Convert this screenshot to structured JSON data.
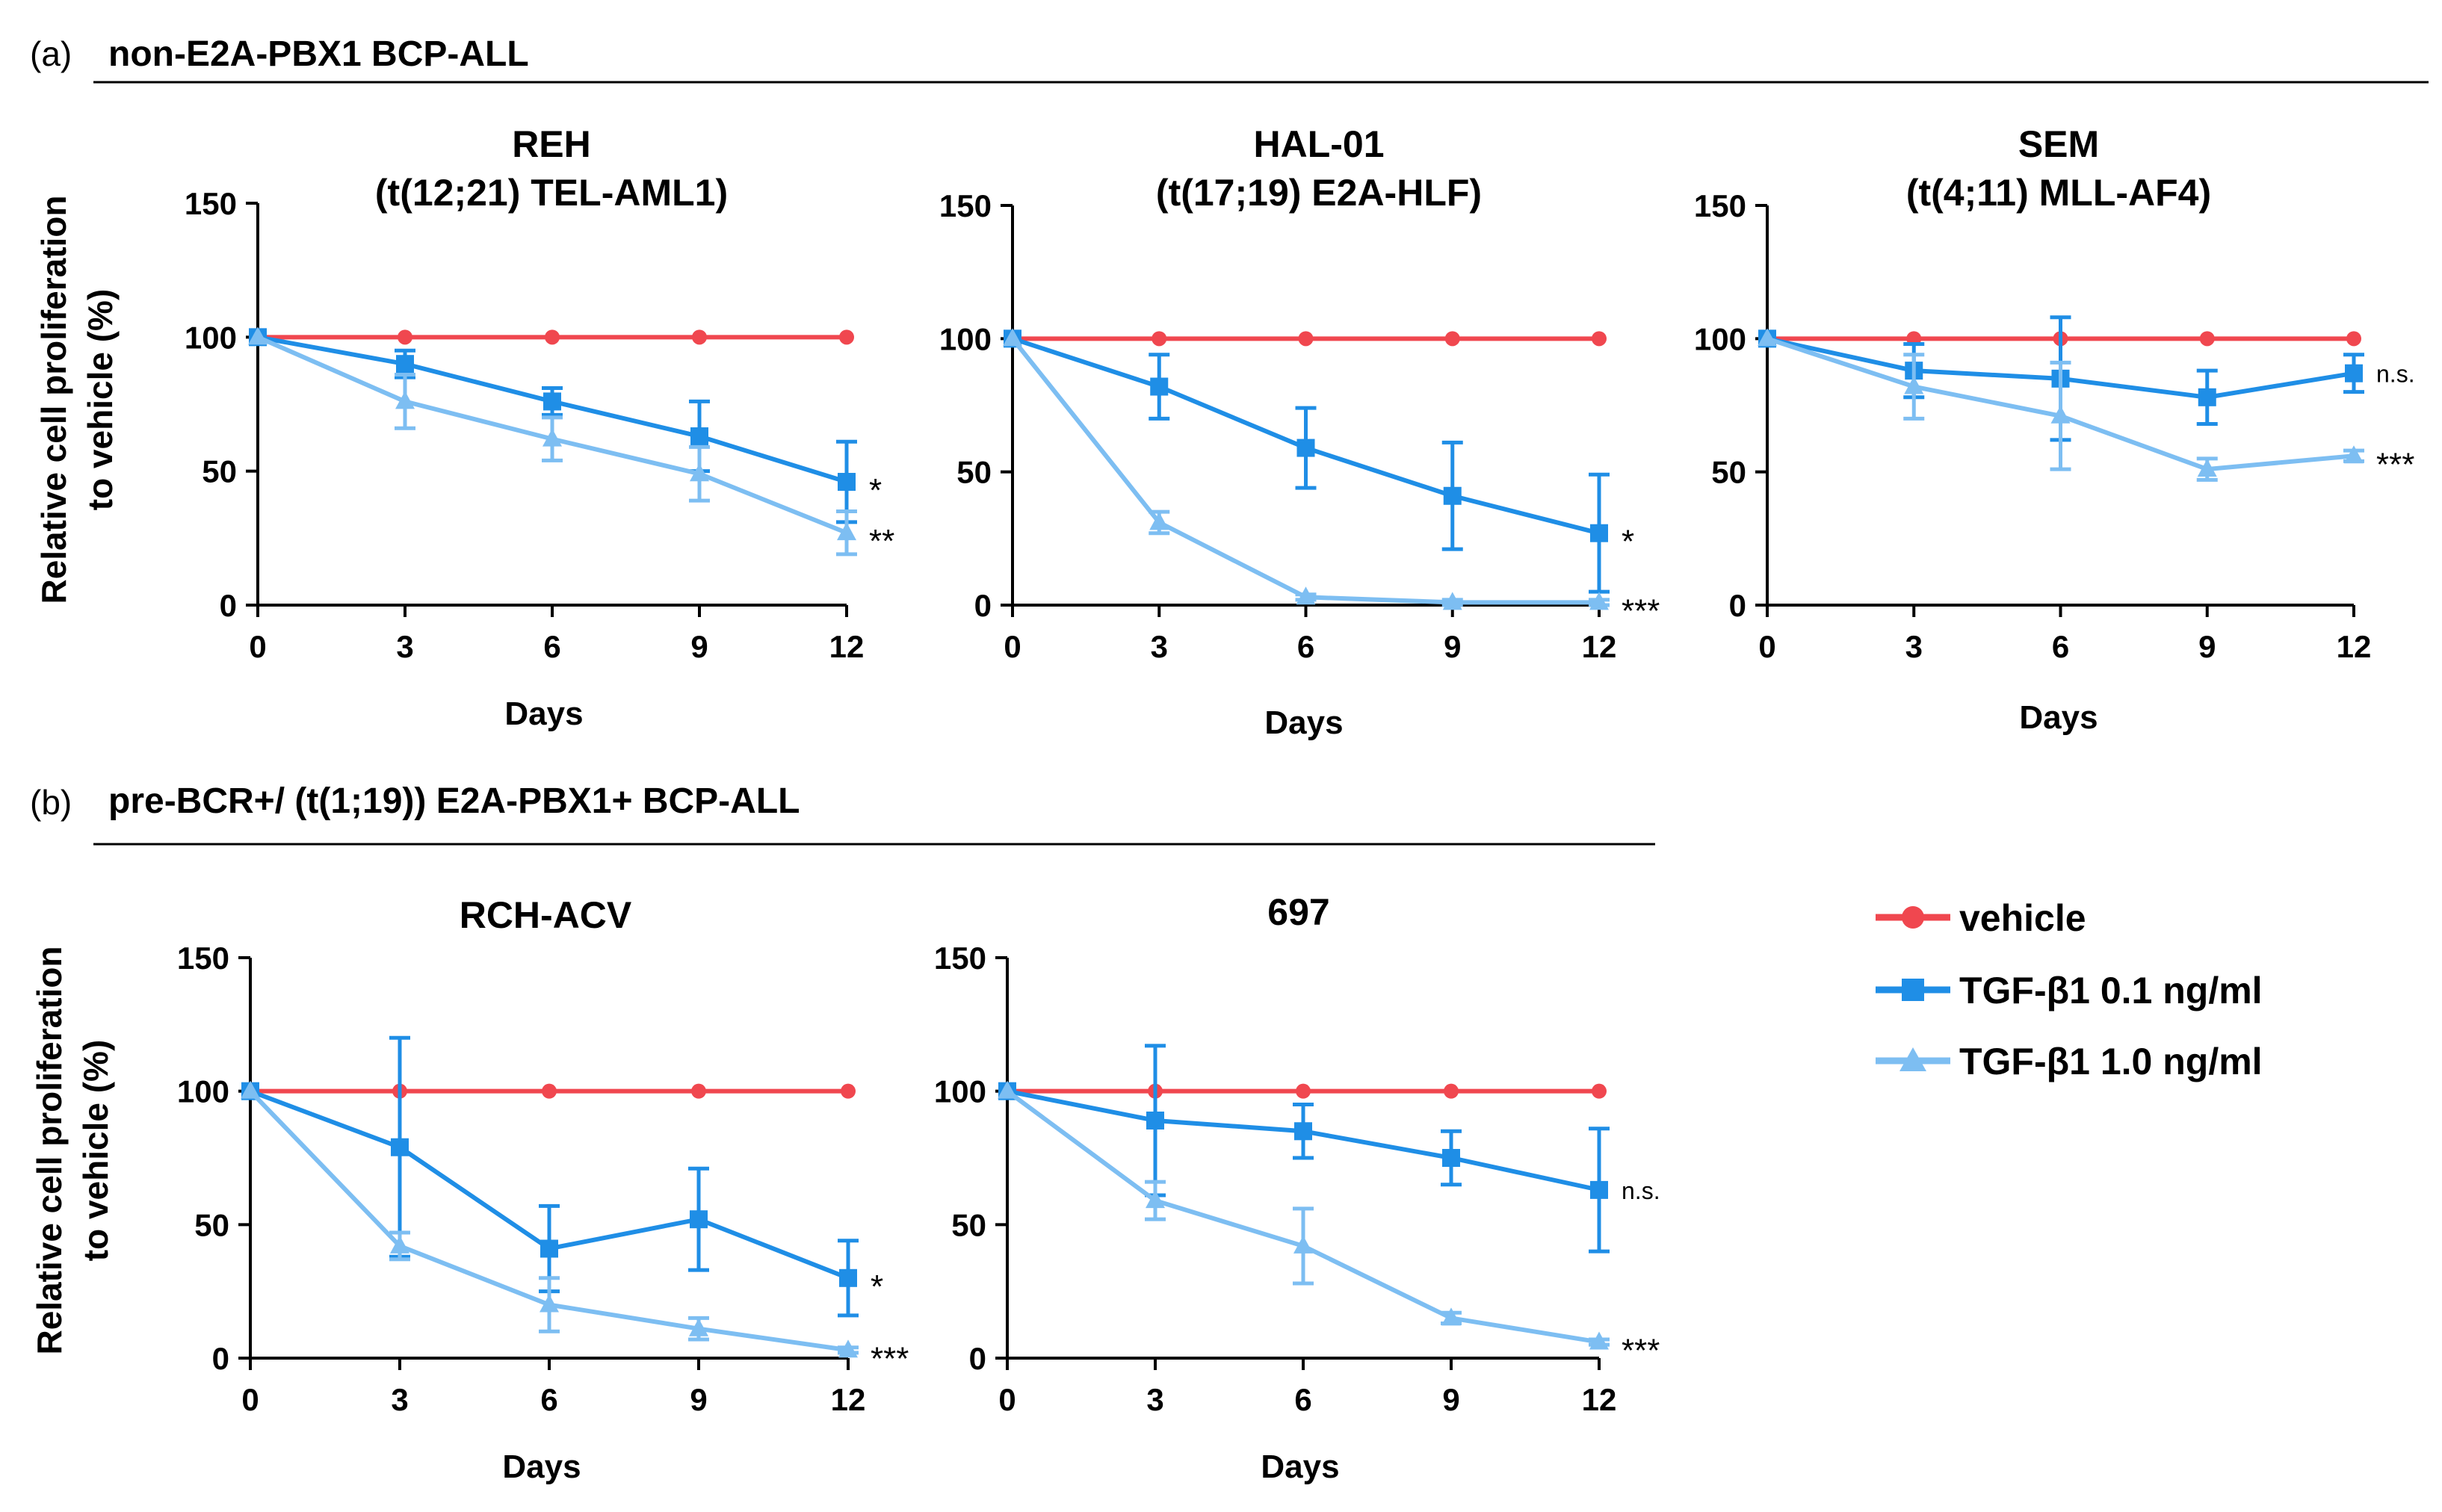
{
  "colors": {
    "vehicle": "#f0474f",
    "tgf_01": "#1f8ee6",
    "tgf_10": "#7dbef2",
    "text": "#000000"
  },
  "sections": [
    {
      "tag": "(a)",
      "title": "non-E2A-PBX1 BCP-ALL"
    },
    {
      "tag": "(b)",
      "title": "pre-BCR+/ (t(1;19)) E2A-PBX1+ BCP-ALL"
    }
  ],
  "y_axis_label": {
    "line1": "Relative cell proliferation",
    "line2": "to vehicle (%)"
  },
  "legend": [
    {
      "key": "vehicle",
      "label": "vehicle",
      "marker": "circle"
    },
    {
      "key": "tgf_01",
      "label": "TGF-β1 0.1 ng/ml",
      "marker": "square"
    },
    {
      "key": "tgf_10",
      "label": "TGF-β1 1.0 ng/ml",
      "marker": "triangle"
    }
  ],
  "chart_data": [
    {
      "type": "line",
      "title": "REH",
      "subtitle": "(t(12;21) TEL-AML1)",
      "xlabel": "Days",
      "ylabel": "Relative cell proliferation to vehicle (%)",
      "x": [
        0,
        3,
        6,
        9,
        12
      ],
      "xticks": [
        "0",
        "3",
        "6",
        "9",
        "12"
      ],
      "yticks": [
        "0",
        "50",
        "100",
        "150"
      ],
      "ylim": [
        0,
        150
      ],
      "series": [
        {
          "name": "vehicle",
          "key": "vehicle",
          "values": [
            100,
            100,
            100,
            100,
            100
          ],
          "err": [
            0,
            0,
            0,
            0,
            0
          ]
        },
        {
          "name": "TGF-β1 0.1 ng/ml",
          "key": "tgf_01",
          "values": [
            100,
            90,
            76,
            63,
            46
          ],
          "err": [
            0,
            5,
            5,
            13,
            15
          ],
          "significance": "*"
        },
        {
          "name": "TGF-β1 1.0 ng/ml",
          "key": "tgf_10",
          "values": [
            100,
            76,
            62,
            49,
            27
          ],
          "err": [
            0,
            10,
            8,
            10,
            8
          ],
          "significance": "**"
        }
      ]
    },
    {
      "type": "line",
      "title": "HAL-01",
      "subtitle": "(t(17;19) E2A-HLF)",
      "xlabel": "Days",
      "ylabel": "",
      "x": [
        0,
        3,
        6,
        9,
        12
      ],
      "xticks": [
        "0",
        "3",
        "6",
        "9",
        "12"
      ],
      "yticks": [
        "0",
        "50",
        "100",
        "150"
      ],
      "ylim": [
        0,
        150
      ],
      "series": [
        {
          "name": "vehicle",
          "key": "vehicle",
          "values": [
            100,
            100,
            100,
            100,
            100
          ],
          "err": [
            0,
            0,
            0,
            0,
            0
          ]
        },
        {
          "name": "TGF-β1 0.1 ng/ml",
          "key": "tgf_01",
          "values": [
            100,
            82,
            59,
            41,
            27
          ],
          "err": [
            0,
            12,
            15,
            20,
            22
          ],
          "significance": "*"
        },
        {
          "name": "TGF-β1 1.0 ng/ml",
          "key": "tgf_10",
          "values": [
            100,
            31,
            3,
            1,
            1
          ],
          "err": [
            0,
            4,
            1,
            1,
            1
          ],
          "significance": "***"
        }
      ]
    },
    {
      "type": "line",
      "title": "SEM",
      "subtitle": "(t(4;11) MLL-AF4)",
      "xlabel": "Days",
      "ylabel": "",
      "x": [
        0,
        3,
        6,
        9,
        12
      ],
      "xticks": [
        "0",
        "3",
        "6",
        "9",
        "12"
      ],
      "yticks": [
        "0",
        "50",
        "100",
        "150"
      ],
      "ylim": [
        0,
        150
      ],
      "series": [
        {
          "name": "vehicle",
          "key": "vehicle",
          "values": [
            100,
            100,
            100,
            100,
            100
          ],
          "err": [
            0,
            0,
            0,
            0,
            0
          ]
        },
        {
          "name": "TGF-β1 0.1 ng/ml",
          "key": "tgf_01",
          "values": [
            100,
            88,
            85,
            78,
            87
          ],
          "err": [
            0,
            10,
            23,
            10,
            7
          ],
          "significance": "n.s."
        },
        {
          "name": "TGF-β1 1.0 ng/ml",
          "key": "tgf_10",
          "values": [
            100,
            82,
            71,
            51,
            56
          ],
          "err": [
            0,
            12,
            20,
            4,
            2
          ],
          "significance": "***"
        }
      ]
    },
    {
      "type": "line",
      "title": "RCH-ACV",
      "subtitle": "",
      "xlabel": "Days",
      "ylabel": "Relative cell proliferation to vehicle (%)",
      "x": [
        0,
        3,
        6,
        9,
        12
      ],
      "xticks": [
        "0",
        "3",
        "6",
        "9",
        "12"
      ],
      "yticks": [
        "0",
        "50",
        "100",
        "150"
      ],
      "ylim": [
        0,
        150
      ],
      "series": [
        {
          "name": "vehicle",
          "key": "vehicle",
          "values": [
            100,
            100,
            100,
            100,
            100
          ],
          "err": [
            0,
            0,
            0,
            0,
            0
          ]
        },
        {
          "name": "TGF-β1 0.1 ng/ml",
          "key": "tgf_01",
          "values": [
            100,
            79,
            41,
            52,
            30
          ],
          "err": [
            0,
            41,
            16,
            19,
            14
          ],
          "significance": "*"
        },
        {
          "name": "TGF-β1 1.0 ng/ml",
          "key": "tgf_10",
          "values": [
            100,
            42,
            20,
            11,
            3
          ],
          "err": [
            0,
            5,
            10,
            4,
            1
          ],
          "significance": "***"
        }
      ]
    },
    {
      "type": "line",
      "title": "697",
      "subtitle": "",
      "xlabel": "Days",
      "ylabel": "",
      "x": [
        0,
        3,
        6,
        9,
        12
      ],
      "xticks": [
        "0",
        "3",
        "6",
        "9",
        "12"
      ],
      "yticks": [
        "0",
        "50",
        "100",
        "150"
      ],
      "ylim": [
        0,
        150
      ],
      "series": [
        {
          "name": "vehicle",
          "key": "vehicle",
          "values": [
            100,
            100,
            100,
            100,
            100
          ],
          "err": [
            0,
            0,
            0,
            0,
            0
          ]
        },
        {
          "name": "TGF-β1 0.1 ng/ml",
          "key": "tgf_01",
          "values": [
            100,
            89,
            85,
            75,
            63
          ],
          "err": [
            0,
            28,
            10,
            10,
            23
          ],
          "significance": "n.s."
        },
        {
          "name": "TGF-β1 1.0 ng/ml",
          "key": "tgf_10",
          "values": [
            100,
            59,
            42,
            15,
            6
          ],
          "err": [
            0,
            7,
            14,
            2,
            1
          ],
          "significance": "***"
        }
      ]
    }
  ]
}
